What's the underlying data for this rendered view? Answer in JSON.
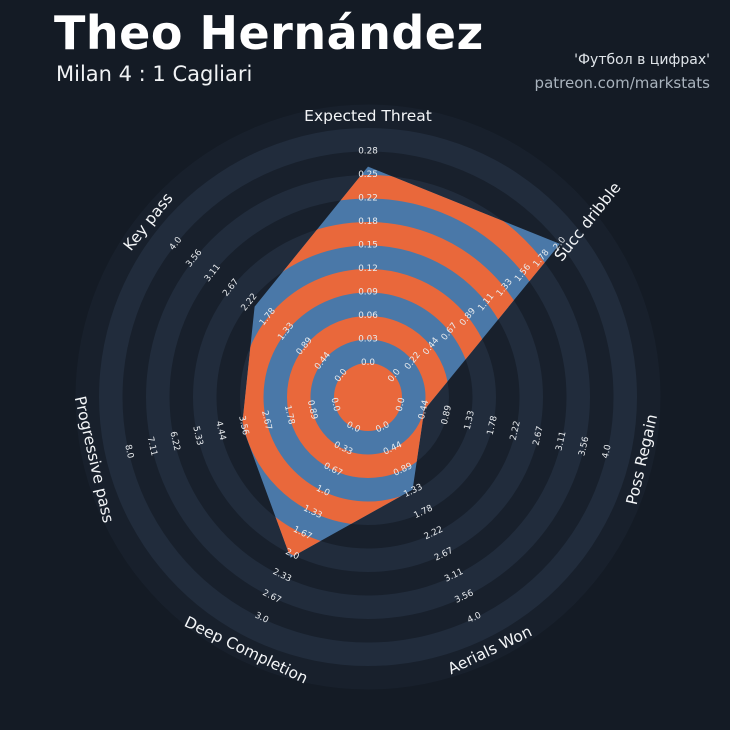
{
  "header": {
    "title": "Theo Hernández",
    "subtitle": "Milan 4 : 1 Cagliari",
    "credit_line1": "'Футбол в цифрах'",
    "credit_line2": "patreon.com/markstats"
  },
  "chart_data": {
    "type": "radar",
    "title": "Theo Hernández — Milan 4 : 1 Cagliari",
    "params": [
      "Expected Threat",
      "Succ dribble",
      "Poss Regain",
      "Aerials Won",
      "Deep Completion",
      "Progressive pass",
      "Key pass"
    ],
    "ranges": [
      [
        0,
        0.28
      ],
      [
        0,
        2.0
      ],
      [
        0,
        4.0
      ],
      [
        0,
        4.0
      ],
      [
        0,
        3.0
      ],
      [
        0,
        8.0
      ],
      [
        0,
        4.0
      ]
    ],
    "values": [
      0.26,
      2.0,
      0.45,
      1.3,
      2.05,
      3.6,
      2.1
    ],
    "tick_labels": [
      [
        "0.0",
        "0.03",
        "0.06",
        "0.09",
        "0.12",
        "0.15",
        "0.18",
        "0.22",
        "0.25",
        "0.28"
      ],
      [
        "0.0",
        "0.22",
        "0.44",
        "0.67",
        "0.89",
        "1.11",
        "1.33",
        "1.56",
        "1.78",
        "2.0"
      ],
      [
        "0.0",
        "0.44",
        "0.89",
        "1.33",
        "1.78",
        "2.22",
        "2.67",
        "3.11",
        "3.56",
        "4.0"
      ],
      [
        "0.0",
        "0.44",
        "0.89",
        "1.33",
        "1.78",
        "2.22",
        "2.67",
        "3.11",
        "3.56",
        "4.0"
      ],
      [
        "0.0",
        "0.33",
        "0.67",
        "1.0",
        "1.33",
        "1.67",
        "2.0",
        "2.33",
        "2.67",
        "3.0"
      ],
      [
        "0.0",
        "0.89",
        "1.78",
        "2.67",
        "3.56",
        "4.44",
        "5.33",
        "6.22",
        "7.11",
        "8.0"
      ],
      [
        "0.0",
        "0.44",
        "0.89",
        "1.33",
        "1.78",
        "2.22",
        "2.67",
        "3.11",
        "3.56",
        "4.0"
      ]
    ],
    "legend_position": "none",
    "grid": "concentric-rings",
    "colors": {
      "background": "#141b25",
      "ring_dark": "#18202c",
      "ring_light": "#212c3c",
      "radar_blue": "#4a78a8",
      "radar_orange": "#e9683b",
      "tick_text": "#e8ebee",
      "label_text": "#f3f5f7",
      "title_text": "#ffffff"
    }
  }
}
